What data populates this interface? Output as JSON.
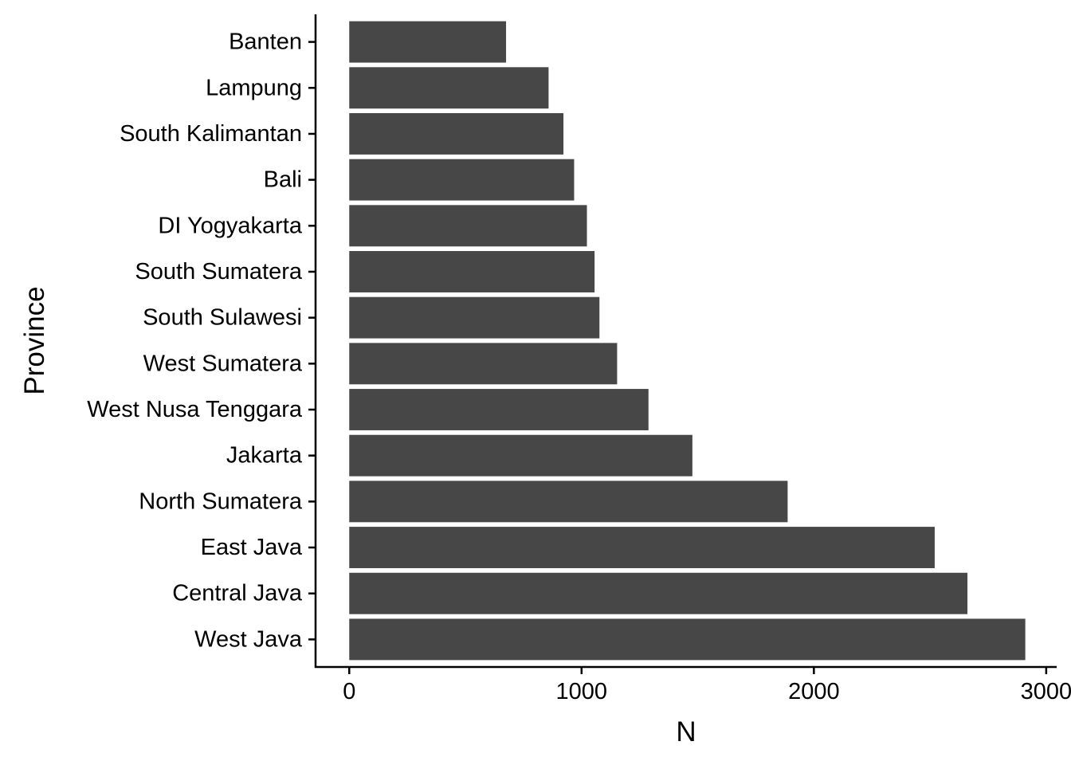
{
  "chart_data": {
    "type": "bar",
    "orientation": "horizontal",
    "title": "",
    "xlabel": "N",
    "ylabel": "Province",
    "categories": [
      "Banten",
      "Lampung",
      "South Kalimantan",
      "Bali",
      "DI Yogyakarta",
      "South Sumatera",
      "South Sulawesi",
      "West Sumatera",
      "West Nusa Tenggara",
      "Jakarta",
      "North Sumatera",
      "East Java",
      "Central Java",
      "West Java"
    ],
    "values": [
      675,
      858,
      922,
      968,
      1023,
      1056,
      1077,
      1153,
      1288,
      1477,
      1887,
      2520,
      2661,
      2910
    ],
    "xlim": [
      -145,
      3045
    ],
    "xticks": [
      0,
      1000,
      2000,
      3000
    ],
    "xtick_labels": [
      "0",
      "1000",
      "2000",
      "3000"
    ],
    "bar_color": "#474747",
    "grid": false,
    "legend": "none"
  }
}
